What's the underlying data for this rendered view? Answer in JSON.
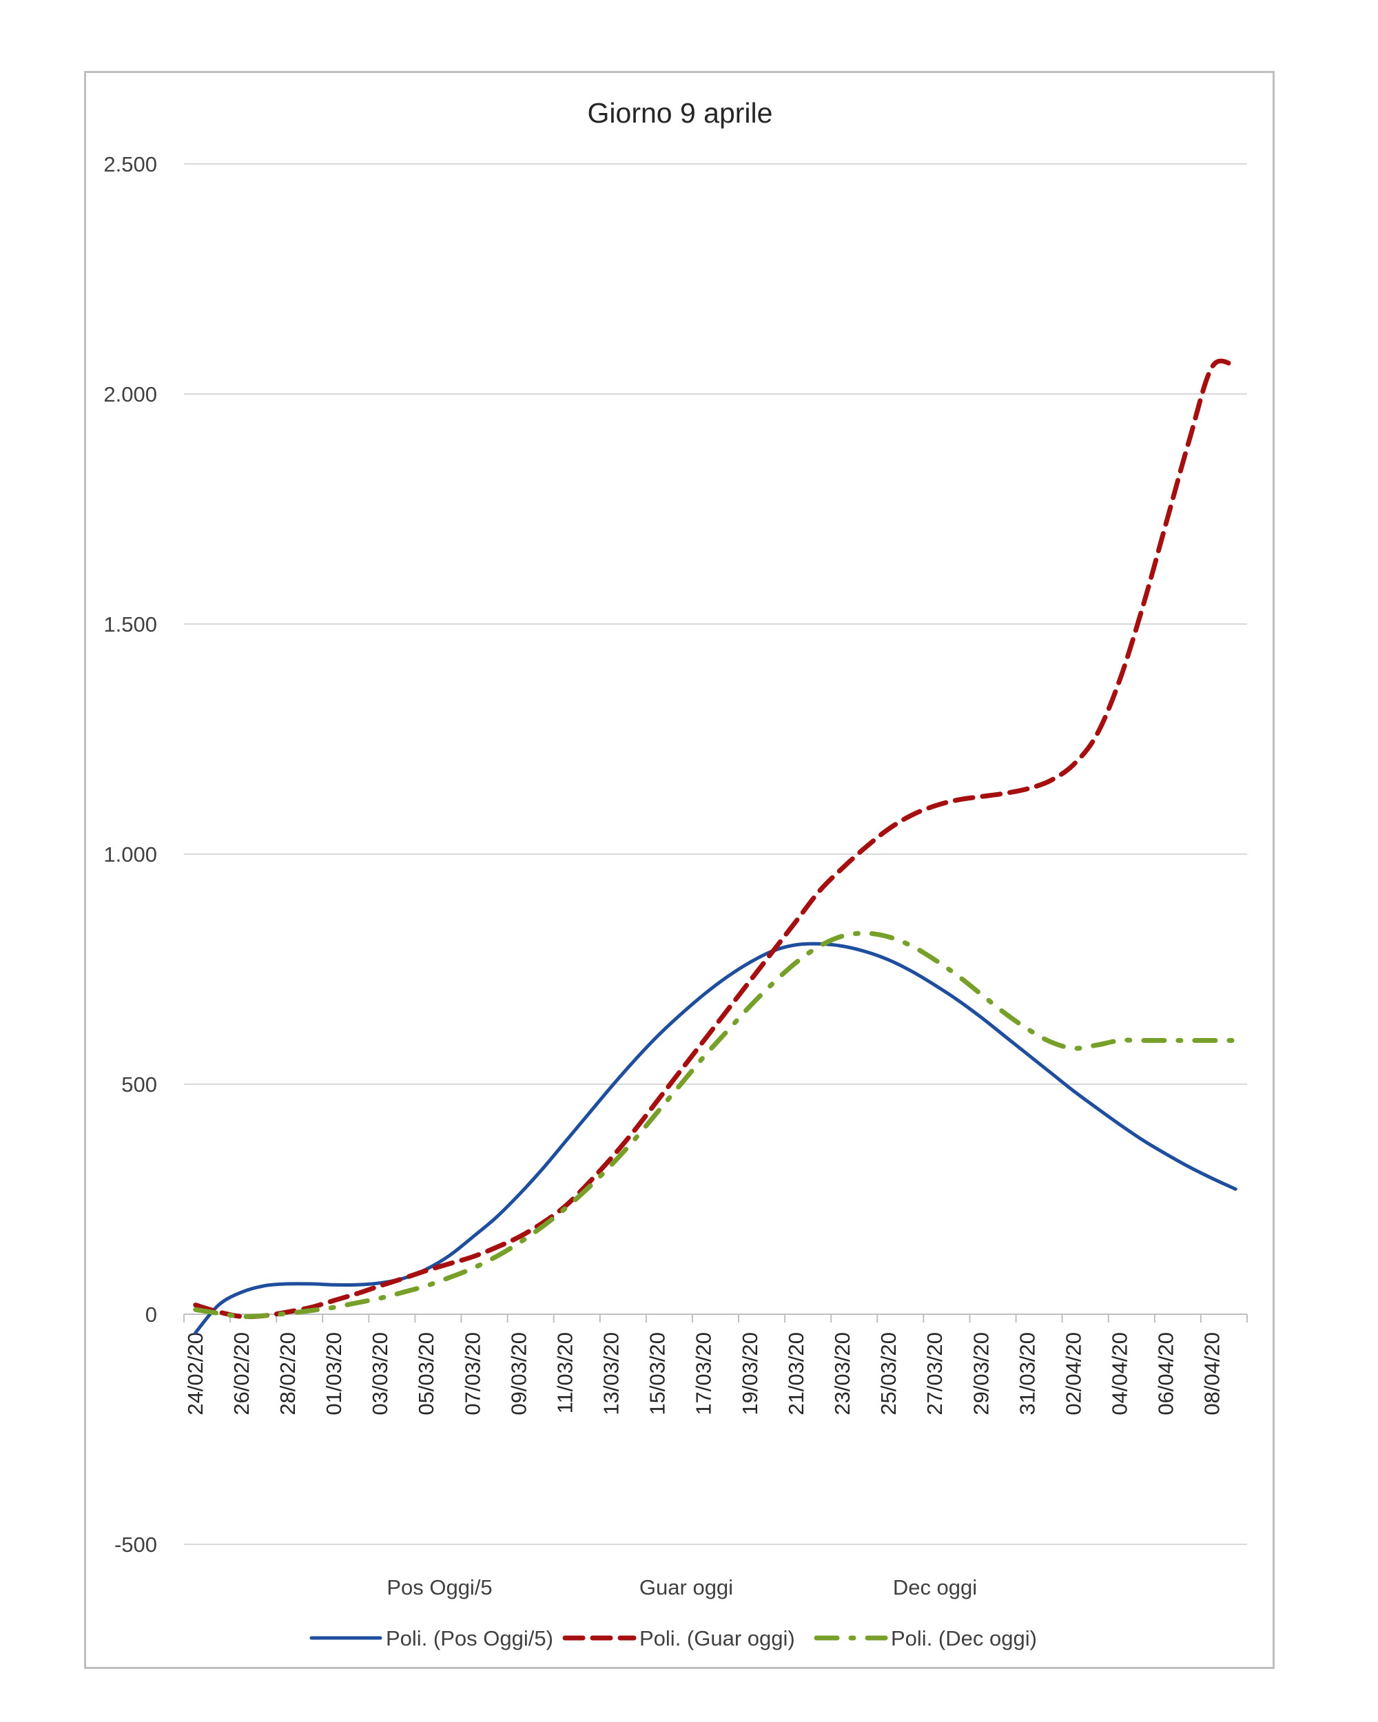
{
  "chart_data": {
    "type": "line",
    "title": "Giorno 9 aprile",
    "xlabel": "",
    "ylabel": "",
    "ylim": [
      -500,
      2500
    ],
    "yticks": [
      -500,
      0,
      500,
      1000,
      1500,
      2000,
      2500
    ],
    "ytick_labels": [
      "-500",
      "0",
      "500",
      "1.000",
      "1.500",
      "2.000",
      "2.500"
    ],
    "x_tick_labels": [
      "24/02/20",
      "26/02/20",
      "28/02/20",
      "01/03/20",
      "03/03/20",
      "05/03/20",
      "07/03/20",
      "09/03/20",
      "11/03/20",
      "13/03/20",
      "15/03/20",
      "17/03/20",
      "19/03/20",
      "21/03/20",
      "23/03/20",
      "25/03/20",
      "27/03/20",
      "29/03/20",
      "31/03/20",
      "02/04/20",
      "04/04/20",
      "06/04/20",
      "08/04/20"
    ],
    "x_start": "24/02/20",
    "x_end": "09/04/20",
    "grid": true,
    "legend_position": "bottom",
    "legend_headers": [
      "Pos Oggi/5",
      "Guar oggi",
      "Dec oggi"
    ],
    "series": [
      {
        "name": "Poli. (Pos Oggi/5)",
        "color": "#1f4e9c",
        "style": "solid",
        "x": [
          "24/02/20",
          "25/02/20",
          "26/02/20",
          "27/02/20",
          "28/02/20",
          "29/02/20",
          "01/03/20",
          "02/03/20",
          "03/03/20",
          "04/03/20",
          "05/03/20",
          "06/03/20",
          "07/03/20",
          "08/03/20",
          "09/03/20",
          "10/03/20",
          "11/03/20",
          "12/03/20",
          "13/03/20",
          "14/03/20",
          "15/03/20",
          "16/03/20",
          "17/03/20",
          "18/03/20",
          "19/03/20",
          "20/03/20",
          "21/03/20",
          "22/03/20",
          "23/03/20",
          "24/03/20",
          "25/03/20",
          "26/03/20",
          "27/03/20",
          "28/03/20",
          "29/03/20",
          "30/03/20",
          "31/03/20",
          "01/04/20",
          "02/04/20",
          "03/04/20",
          "04/04/20",
          "05/04/20",
          "06/04/20",
          "07/04/20",
          "08/04/20",
          "09/04/20"
        ],
        "values": [
          -40,
          20,
          48,
          62,
          66,
          66,
          64,
          64,
          68,
          78,
          98,
          128,
          168,
          210,
          260,
          315,
          375,
          435,
          495,
          552,
          605,
          652,
          695,
          733,
          765,
          790,
          803,
          805,
          800,
          788,
          770,
          745,
          715,
          682,
          645,
          605,
          565,
          525,
          485,
          448,
          412,
          378,
          348,
          320,
          295,
          272
        ]
      },
      {
        "name": "Poli. (Guar oggi)",
        "color": "#a50f0f",
        "style": "dashed",
        "x": [
          "24/02/20",
          "25/02/20",
          "26/02/20",
          "27/02/20",
          "28/02/20",
          "29/02/20",
          "01/03/20",
          "02/03/20",
          "03/03/20",
          "04/03/20",
          "05/03/20",
          "06/03/20",
          "07/03/20",
          "08/03/20",
          "09/03/20",
          "10/03/20",
          "11/03/20",
          "12/03/20",
          "13/03/20",
          "14/03/20",
          "15/03/20",
          "16/03/20",
          "17/03/20",
          "18/03/20",
          "19/03/20",
          "20/03/20",
          "21/03/20",
          "22/03/20",
          "23/03/20",
          "24/03/20",
          "25/03/20",
          "26/03/20",
          "27/03/20",
          "28/03/20",
          "29/03/20",
          "30/03/20",
          "31/03/20",
          "01/04/20",
          "02/04/20",
          "03/04/20",
          "04/04/20",
          "05/04/20",
          "06/04/20",
          "07/04/20",
          "08/04/20",
          "09/04/20"
        ],
        "values": [
          20,
          5,
          -5,
          -3,
          5,
          15,
          30,
          45,
          62,
          78,
          95,
          110,
          125,
          145,
          168,
          198,
          235,
          285,
          340,
          400,
          465,
          530,
          595,
          660,
          725,
          790,
          855,
          920,
          970,
          1015,
          1055,
          1085,
          1105,
          1118,
          1125,
          1132,
          1142,
          1160,
          1195,
          1260,
          1380,
          1540,
          1720,
          1900,
          2060,
          2060
        ]
      },
      {
        "name": "Poli. (Dec oggi)",
        "color": "#77a02a",
        "style": "dashdot",
        "x": [
          "24/02/20",
          "25/02/20",
          "26/02/20",
          "27/02/20",
          "28/02/20",
          "29/02/20",
          "01/03/20",
          "02/03/20",
          "03/03/20",
          "04/03/20",
          "05/03/20",
          "06/03/20",
          "07/03/20",
          "08/03/20",
          "09/03/20",
          "10/03/20",
          "11/03/20",
          "12/03/20",
          "13/03/20",
          "14/03/20",
          "15/03/20",
          "16/03/20",
          "17/03/20",
          "18/03/20",
          "19/03/20",
          "20/03/20",
          "21/03/20",
          "22/03/20",
          "23/03/20",
          "24/03/20",
          "25/03/20",
          "26/03/20",
          "27/03/20",
          "28/03/20",
          "29/03/20",
          "30/03/20",
          "31/03/20",
          "01/04/20",
          "02/04/20",
          "03/04/20",
          "04/04/20",
          "05/04/20",
          "06/04/20",
          "07/04/20",
          "08/04/20",
          "09/04/20"
        ],
        "values": [
          10,
          2,
          -5,
          -3,
          2,
          8,
          15,
          25,
          35,
          48,
          62,
          80,
          100,
          125,
          155,
          190,
          230,
          275,
          325,
          380,
          440,
          500,
          560,
          615,
          670,
          720,
          765,
          800,
          822,
          828,
          820,
          800,
          770,
          735,
          695,
          655,
          620,
          592,
          578,
          585,
          595,
          595,
          595,
          595,
          595,
          595
        ]
      }
    ]
  }
}
